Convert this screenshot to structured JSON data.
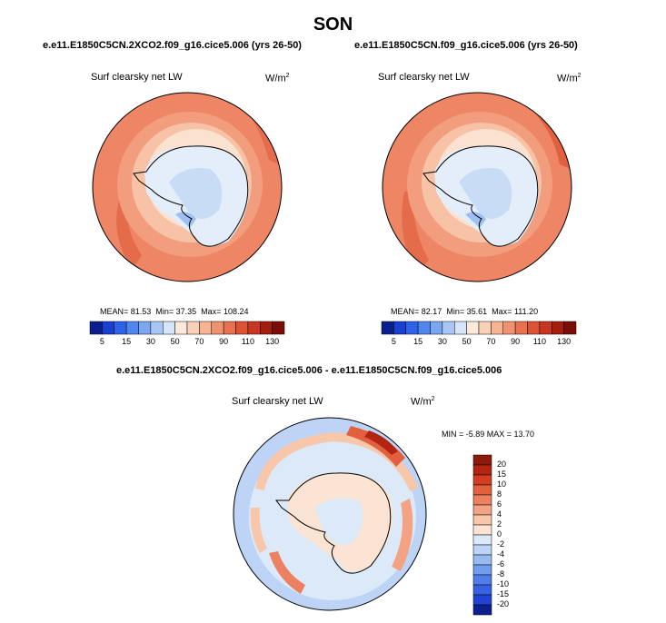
{
  "title": "SON",
  "panels": [
    {
      "case": "e.e11.E1850C5CN.2XCO2.f09_g16.cice5.006 (yrs 26-50)",
      "variable": "Surf clearsky net LW",
      "units": "W/m",
      "units_sup": "2",
      "mean_label": "MEAN=",
      "mean": "81.53",
      "min_label": "Min=",
      "min": "37.35",
      "max_label": "Max=",
      "max": "108.24"
    },
    {
      "case": "e.e11.E1850C5CN.f09_g16.cice5.006 (yrs 26-50)",
      "variable": "Surf clearsky net LW",
      "units": "W/m",
      "units_sup": "2",
      "mean_label": "MEAN=",
      "mean": "82.17",
      "min_label": "Min=",
      "min": "35.61",
      "max_label": "Max=",
      "max": "111.20"
    }
  ],
  "colorbar": {
    "labels": [
      "5",
      "15",
      "30",
      "50",
      "70",
      "90",
      "110",
      "130"
    ],
    "colors": [
      "#0a1f8c",
      "#1b3fd1",
      "#2f62e8",
      "#4f86ef",
      "#7aa6f2",
      "#a9c7f5",
      "#d6e6f8",
      "#fbe9dc",
      "#f9d1b8",
      "#f6b493",
      "#f0926f",
      "#e8714f",
      "#dd5235",
      "#c83520",
      "#a41e10",
      "#7a0d06"
    ]
  },
  "diff": {
    "title": "e.e11.E1850C5CN.2XCO2.f09_g16.cice5.006 - e.e11.E1850C5CN.f09_g16.cice5.006",
    "variable": "Surf clearsky net LW",
    "units": "W/m",
    "units_sup": "2",
    "minmax": "MIN = -5.89 MAX = 13.70",
    "labels": [
      "20",
      "15",
      "10",
      "8",
      "6",
      "4",
      "2",
      "0",
      "-2",
      "-4",
      "-6",
      "-8",
      "-10",
      "-15",
      "-20"
    ],
    "colors": [
      "#8e1a0b",
      "#b32512",
      "#d43d22",
      "#e2603e",
      "#ec8060",
      "#f3a383",
      "#f8c7aa",
      "#fbe4d3",
      "#dbe9f8",
      "#bdd4f6",
      "#98baf2",
      "#729cee",
      "#4f7eea",
      "#3561e3",
      "#2143d4",
      "#0c1f8e"
    ]
  }
}
